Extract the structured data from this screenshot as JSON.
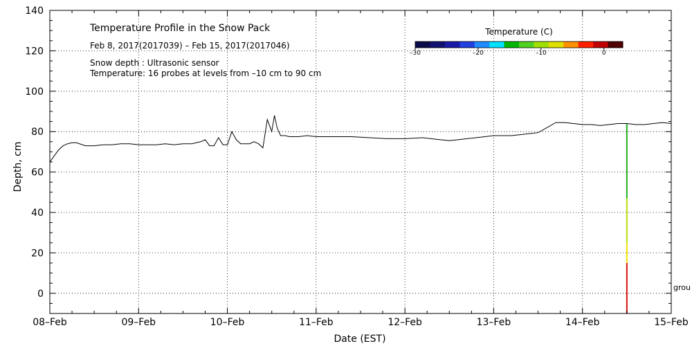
{
  "chart_data": {
    "type": "line",
    "title": "Temperature Profile in the Snow Pack",
    "subtitle": "Feb  8, 2017(2017039) – Feb 15, 2017(2017046)",
    "notes": [
      "Snow depth : Ultrasonic sensor",
      "Temperature: 16 probes at levels from –10 cm to 90 cm"
    ],
    "xlabel": "Date (EST)",
    "ylabel": "Depth, cm",
    "xlim": [
      0,
      7
    ],
    "ylim": [
      -10,
      140
    ],
    "grid": true,
    "x_ticks": [
      {
        "x": 0,
        "label": "08–Feb"
      },
      {
        "x": 1,
        "label": "09–Feb"
      },
      {
        "x": 2,
        "label": "10–Feb"
      },
      {
        "x": 3,
        "label": "11–Feb"
      },
      {
        "x": 4,
        "label": "12–Feb"
      },
      {
        "x": 5,
        "label": "13–Feb"
      },
      {
        "x": 6,
        "label": "14–Feb"
      },
      {
        "x": 7,
        "label": "15–Feb"
      }
    ],
    "y_ticks": [
      {
        "y": 0,
        "label": "0"
      },
      {
        "y": 20,
        "label": "20"
      },
      {
        "y": 40,
        "label": "40"
      },
      {
        "y": 60,
        "label": "60"
      },
      {
        "y": 80,
        "label": "80"
      },
      {
        "y": 100,
        "label": "100"
      },
      {
        "y": 120,
        "label": "120"
      },
      {
        "y": 140,
        "label": "140"
      }
    ],
    "series": [
      {
        "name": "Snow depth",
        "color": "#000000",
        "x": [
          0,
          0.05,
          0.1,
          0.15,
          0.2,
          0.25,
          0.3,
          0.4,
          0.5,
          0.6,
          0.7,
          0.8,
          0.9,
          1.0,
          1.1,
          1.2,
          1.3,
          1.4,
          1.5,
          1.6,
          1.7,
          1.75,
          1.8,
          1.85,
          1.9,
          1.95,
          2.0,
          2.05,
          2.1,
          2.15,
          2.2,
          2.25,
          2.3,
          2.35,
          2.4,
          2.45,
          2.5,
          2.53,
          2.56,
          2.6,
          2.65,
          2.7,
          2.8,
          2.9,
          3.0,
          3.2,
          3.4,
          3.6,
          3.8,
          4.0,
          4.2,
          4.4,
          4.5,
          4.6,
          4.7,
          4.8,
          4.9,
          5.0,
          5.1,
          5.2,
          5.3,
          5.4,
          5.5,
          5.6,
          5.7,
          5.8,
          5.9,
          6.0,
          6.1,
          6.2,
          6.3,
          6.4,
          6.5,
          6.6,
          6.7,
          6.8,
          6.9,
          7.0
        ],
        "y": [
          65,
          68,
          71,
          73,
          74,
          74.5,
          74.5,
          73,
          73,
          73.5,
          73.5,
          74,
          74,
          73.5,
          73.5,
          73.5,
          74,
          73.5,
          74,
          74,
          75,
          76,
          73,
          73,
          77,
          73.5,
          73.5,
          80,
          76,
          74,
          74,
          74,
          75,
          74,
          72,
          86,
          80,
          88,
          82,
          78,
          78,
          77.5,
          77.5,
          78,
          77.5,
          77.5,
          77.5,
          77,
          76.5,
          76.5,
          77,
          76,
          75.5,
          76,
          76.5,
          77,
          77.5,
          78,
          78,
          78,
          78.5,
          79,
          79.5,
          82,
          84.5,
          84.5,
          84,
          83.5,
          83.5,
          83,
          83.5,
          84,
          84,
          83.5,
          83.5,
          84,
          84.5,
          84
        ]
      }
    ],
    "colorbar": {
      "title": "Temperature (C)",
      "min": -30,
      "max": 3,
      "ticks": [
        {
          "value": -30,
          "label": "–30"
        },
        {
          "value": -20,
          "label": "–20"
        },
        {
          "value": -10,
          "label": "–10"
        },
        {
          "value": 0,
          "label": "0"
        }
      ],
      "colors": [
        "#0a0a4a",
        "#101070",
        "#1a1aa8",
        "#2040e0",
        "#1e8cff",
        "#00e0ff",
        "#00b400",
        "#50d020",
        "#a0e000",
        "#e0e000",
        "#ff9000",
        "#ff2000",
        "#c00000",
        "#500000"
      ]
    },
    "temperature_profile": {
      "x": 6.5,
      "segments": [
        {
          "from": -10,
          "to": 15,
          "color": "#dd1010"
        },
        {
          "from": 15,
          "to": 25,
          "color": "#f0e000"
        },
        {
          "from": 25,
          "to": 47,
          "color": "#b8e000"
        },
        {
          "from": 47,
          "to": 84,
          "color": "#20b020"
        }
      ]
    },
    "annotations": [
      {
        "text": "grou",
        "x": 7,
        "y": 3
      }
    ]
  }
}
